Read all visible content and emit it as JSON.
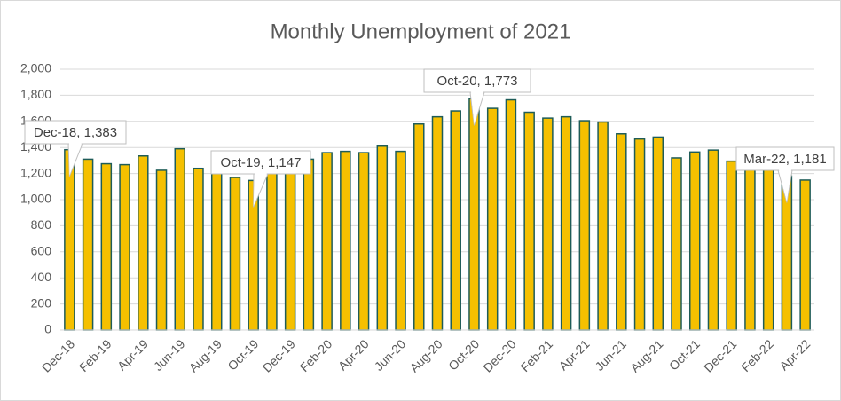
{
  "chart_data": {
    "type": "bar",
    "title": "Monthly Unemployment  of 2021",
    "categories": [
      "Dec-18",
      null,
      "Feb-19",
      null,
      "Apr-19",
      null,
      "Jun-19",
      null,
      "Aug-19",
      null,
      "Oct-19",
      null,
      "Dec-19",
      null,
      "Feb-20",
      null,
      "Apr-20",
      null,
      "Jun-20",
      null,
      "Aug-20",
      null,
      "Oct-20",
      null,
      "Dec-20",
      null,
      "Feb-21",
      null,
      "Apr-21",
      null,
      "Jun-21",
      null,
      "Aug-21",
      null,
      "Oct-21",
      null,
      "Dec-21",
      null,
      "Feb-22",
      null,
      "Apr-22"
    ],
    "values": [
      1383,
      1310,
      1275,
      1268,
      1335,
      1225,
      1390,
      1240,
      1200,
      1170,
      1147,
      1210,
      1230,
      1310,
      1360,
      1370,
      1360,
      1410,
      1370,
      1580,
      1635,
      1680,
      1773,
      1700,
      1765,
      1670,
      1625,
      1635,
      1605,
      1595,
      1505,
      1465,
      1480,
      1320,
      1365,
      1380,
      1295,
      1260,
      1240,
      1181,
      1150
    ],
    "value_labels": [
      "Dec-18, 1,383",
      null,
      null,
      null,
      null,
      null,
      null,
      null,
      null,
      null,
      "Oct-19, 1,147",
      null,
      null,
      null,
      null,
      null,
      null,
      null,
      null,
      null,
      null,
      null,
      "Oct-20, 1,773",
      null,
      null,
      null,
      null,
      null,
      null,
      null,
      null,
      null,
      null,
      null,
      null,
      null,
      null,
      null,
      null,
      "Mar-22, 1,181",
      null
    ],
    "color": "#f5c000",
    "edge_color": "#1e5c58",
    "ylim": [
      0,
      2000
    ],
    "yticks": [
      0,
      200,
      400,
      600,
      800,
      {
        "value": 1000,
        "label": "1,000"
      },
      {
        "value": 1200,
        "label": "1,200"
      },
      {
        "value": 1400,
        "label": "1,400"
      },
      {
        "value": 1600,
        "label": "1,600"
      },
      {
        "value": 1800,
        "label": "1,800"
      },
      {
        "value": 2000,
        "label": "2,000"
      }
    ],
    "grid": true
  }
}
